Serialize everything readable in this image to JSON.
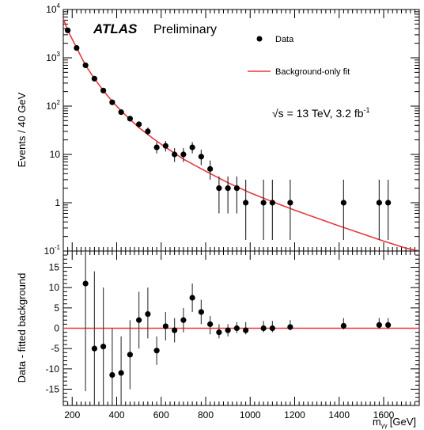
{
  "chart_data": [
    {
      "type": "scatter",
      "panel": "main",
      "ylabel": "Events / 40 GeV",
      "xlim": [
        160,
        1760
      ],
      "ylim": [
        0.1,
        10000
      ],
      "yscale": "log",
      "x_ticks": [
        200,
        400,
        600,
        800,
        1000,
        1200,
        1400,
        1600
      ],
      "y_tick_labels": [
        {
          "value": 0.1,
          "base": "10",
          "exp": "-1"
        },
        {
          "value": 1,
          "base": "1",
          "exp": ""
        },
        {
          "value": 10,
          "base": "10",
          "exp": ""
        },
        {
          "value": 100,
          "base": "10",
          "exp": "2"
        },
        {
          "value": 1000,
          "base": "10",
          "exp": "3"
        },
        {
          "value": 10000,
          "base": "10",
          "exp": "4"
        }
      ],
      "atlas_label": "ATLAS",
      "atlas_sublabel": "Preliminary",
      "energy_label": "√s = 13 TeV, 3.2 fb",
      "energy_label_exp": "-1",
      "legend": [
        {
          "label": "Data",
          "kind": "marker",
          "color": "#000000"
        },
        {
          "label": "Background-only fit",
          "kind": "line",
          "color": "#e8383d"
        }
      ],
      "legend_position": "top-right",
      "series": [
        {
          "name": "Data",
          "color": "#000000",
          "points": [
            {
              "x": 180,
              "y": 3700,
              "lo": 3580,
              "hi": 3820
            },
            {
              "x": 220,
              "y": 1600,
              "lo": 1520,
              "hi": 1680
            },
            {
              "x": 260,
              "y": 700,
              "lo": 650,
              "hi": 750
            },
            {
              "x": 300,
              "y": 370,
              "lo": 340,
              "hi": 400
            },
            {
              "x": 340,
              "y": 210,
              "lo": 190,
              "hi": 230
            },
            {
              "x": 380,
              "y": 120,
              "lo": 108,
              "hi": 132
            },
            {
              "x": 420,
              "y": 75,
              "lo": 66,
              "hi": 84
            },
            {
              "x": 460,
              "y": 55,
              "lo": 48,
              "hi": 62
            },
            {
              "x": 500,
              "y": 42,
              "lo": 36,
              "hi": 48
            },
            {
              "x": 540,
              "y": 30,
              "lo": 25,
              "hi": 36
            },
            {
              "x": 580,
              "y": 14,
              "lo": 10.5,
              "hi": 18
            },
            {
              "x": 620,
              "y": 15,
              "lo": 11.5,
              "hi": 19
            },
            {
              "x": 660,
              "y": 10,
              "lo": 7,
              "hi": 13.5
            },
            {
              "x": 700,
              "y": 10,
              "lo": 7,
              "hi": 13.5
            },
            {
              "x": 740,
              "y": 14,
              "lo": 10.5,
              "hi": 18
            },
            {
              "x": 780,
              "y": 9,
              "lo": 6,
              "hi": 12.5
            },
            {
              "x": 820,
              "y": 5,
              "lo": 3,
              "hi": 7.5
            },
            {
              "x": 860,
              "y": 2,
              "lo": 0.6,
              "hi": 3.5
            },
            {
              "x": 900,
              "y": 2,
              "lo": 0.6,
              "hi": 3.5
            },
            {
              "x": 940,
              "y": 2,
              "lo": 0.6,
              "hi": 3.5
            },
            {
              "x": 980,
              "y": 1,
              "lo": 0.17,
              "hi": 3
            },
            {
              "x": 1060,
              "y": 1,
              "lo": 0.17,
              "hi": 3
            },
            {
              "x": 1100,
              "y": 1,
              "lo": 0.17,
              "hi": 3
            },
            {
              "x": 1180,
              "y": 1,
              "lo": 0.17,
              "hi": 3
            },
            {
              "x": 1420,
              "y": 1,
              "lo": 0.17,
              "hi": 3
            },
            {
              "x": 1580,
              "y": 1,
              "lo": 0.17,
              "hi": 3
            },
            {
              "x": 1620,
              "y": 1,
              "lo": 0.17,
              "hi": 3
            }
          ]
        },
        {
          "name": "Background-only fit",
          "color": "#e8383d",
          "curve": [
            {
              "x": 160,
              "y": 6500
            },
            {
              "x": 180,
              "y": 3700
            },
            {
              "x": 220,
              "y": 1600
            },
            {
              "x": 260,
              "y": 700
            },
            {
              "x": 300,
              "y": 370
            },
            {
              "x": 340,
              "y": 210
            },
            {
              "x": 380,
              "y": 125
            },
            {
              "x": 420,
              "y": 80
            },
            {
              "x": 460,
              "y": 53
            },
            {
              "x": 500,
              "y": 36
            },
            {
              "x": 560,
              "y": 22
            },
            {
              "x": 620,
              "y": 14
            },
            {
              "x": 700,
              "y": 8
            },
            {
              "x": 800,
              "y": 4.5
            },
            {
              "x": 900,
              "y": 2.6
            },
            {
              "x": 1000,
              "y": 1.6
            },
            {
              "x": 1100,
              "y": 1.05
            },
            {
              "x": 1200,
              "y": 0.7
            },
            {
              "x": 1300,
              "y": 0.48
            },
            {
              "x": 1400,
              "y": 0.33
            },
            {
              "x": 1500,
              "y": 0.23
            },
            {
              "x": 1600,
              "y": 0.16
            },
            {
              "x": 1700,
              "y": 0.115
            },
            {
              "x": 1760,
              "y": 0.095
            }
          ]
        }
      ]
    },
    {
      "type": "scatter",
      "panel": "ratio",
      "xlabel": "m",
      "xlabel_sub": "γγ",
      "xlabel_unit": "[GeV]",
      "ylabel": "Data - fitted background",
      "xlim": [
        160,
        1760
      ],
      "ylim": [
        -19,
        19
      ],
      "x_ticks": [
        200,
        400,
        600,
        800,
        1000,
        1200,
        1400,
        1600
      ],
      "y_ticks": [
        -15,
        -10,
        -5,
        0,
        5,
        10,
        15
      ],
      "reference_line": {
        "y": 0,
        "color": "#e8383d"
      },
      "series": [
        {
          "name": "Data",
          "color": "#000000",
          "points": [
            {
              "x": 260,
              "y": 11,
              "lo": -15.5,
              "hi": 19
            },
            {
              "x": 300,
              "y": -5,
              "lo": -19,
              "hi": 14
            },
            {
              "x": 340,
              "y": -4.5,
              "lo": -19,
              "hi": 10
            },
            {
              "x": 380,
              "y": -11.5,
              "lo": -19,
              "hi": 0
            },
            {
              "x": 420,
              "y": -11,
              "lo": -19,
              "hi": -2
            },
            {
              "x": 460,
              "y": -6.5,
              "lo": -15,
              "hi": 2
            },
            {
              "x": 500,
              "y": 2,
              "lo": -5,
              "hi": 9
            },
            {
              "x": 540,
              "y": 3.5,
              "lo": -2.5,
              "hi": 10
            },
            {
              "x": 580,
              "y": -5.5,
              "lo": -9,
              "hi": -2
            },
            {
              "x": 620,
              "y": 0.5,
              "lo": -3,
              "hi": 4
            },
            {
              "x": 660,
              "y": -0.5,
              "lo": -3.5,
              "hi": 2.5
            },
            {
              "x": 700,
              "y": 2,
              "lo": -1,
              "hi": 5
            },
            {
              "x": 740,
              "y": 7.5,
              "lo": 4,
              "hi": 11
            },
            {
              "x": 780,
              "y": 4,
              "lo": 1,
              "hi": 7
            },
            {
              "x": 820,
              "y": 1,
              "lo": -1.5,
              "hi": 3
            },
            {
              "x": 860,
              "y": -1,
              "lo": -2.5,
              "hi": 1
            },
            {
              "x": 900,
              "y": -0.5,
              "lo": -2,
              "hi": 1
            },
            {
              "x": 940,
              "y": 0,
              "lo": -1.2,
              "hi": 1.5
            },
            {
              "x": 980,
              "y": -0.5,
              "lo": -1.5,
              "hi": 1.5
            },
            {
              "x": 1060,
              "y": 0,
              "lo": -1,
              "hi": 1.8
            },
            {
              "x": 1100,
              "y": 0,
              "lo": -1,
              "hi": 1.8
            },
            {
              "x": 1180,
              "y": 0.3,
              "lo": -0.5,
              "hi": 2
            },
            {
              "x": 1420,
              "y": 0.6,
              "lo": -0.3,
              "hi": 2.5
            },
            {
              "x": 1580,
              "y": 0.8,
              "lo": -0.2,
              "hi": 2.5
            },
            {
              "x": 1620,
              "y": 0.8,
              "lo": -0.2,
              "hi": 2.5
            }
          ]
        }
      ]
    }
  ]
}
